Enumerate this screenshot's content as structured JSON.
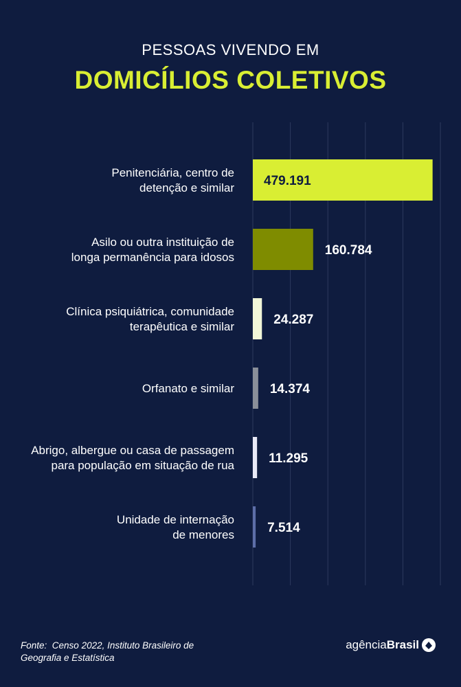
{
  "header": {
    "title_line1": "PESSOAS VIVENDO EM",
    "title_line2": "DOMICÍLIOS COLETIVOS"
  },
  "chart_data": {
    "type": "bar",
    "orientation": "horizontal",
    "title": "PESSOAS VIVENDO EM DOMICÍLIOS COLETIVOS",
    "categories": [
      [
        "Penitenciária, centro de",
        "detenção e similar"
      ],
      [
        "Asilo ou outra instituição de",
        "longa permanência para idosos"
      ],
      [
        "Clínica psiquiátrica, comunidade",
        "terapêutica e similar"
      ],
      [
        "Orfanato e similar"
      ],
      [
        "Abrigo, albergue ou casa de passagem",
        "para população em situação de rua"
      ],
      [
        "Unidade de internação",
        "de menores"
      ]
    ],
    "values": [
      479191,
      160784,
      24287,
      14374,
      11295,
      7514
    ],
    "value_labels": [
      "479.191",
      "160.784",
      "24.287",
      "14.374",
      "11.295",
      "7.514"
    ],
    "bar_colors": [
      "#d9ee33",
      "#7f8c00",
      "#f1f6d8",
      "#8a8f99",
      "#e9eaf7",
      "#5d6ea8"
    ],
    "grid": true,
    "xlim": [
      0,
      500000
    ]
  },
  "footer": {
    "source_label": "Fonte:",
    "source_text": "Censo 2022, Instituto Brasileiro de Geografia e Estatística",
    "brand_light": "agência",
    "brand_bold": "Brasil"
  }
}
